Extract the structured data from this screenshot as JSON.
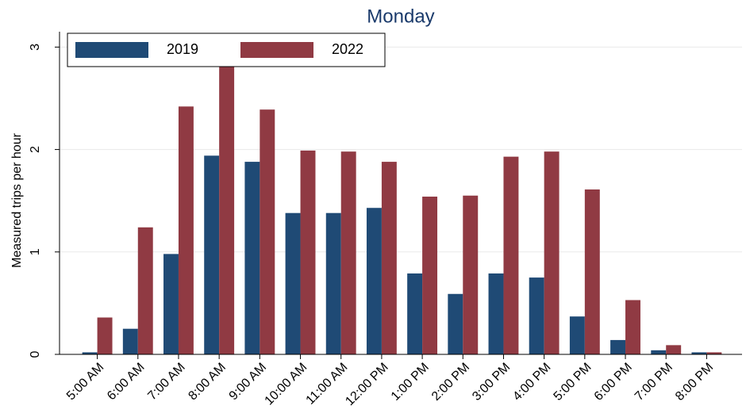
{
  "chart_data": {
    "type": "bar",
    "title": "Monday",
    "y_label": "Measured trips per hour",
    "categories": [
      "5:00 AM",
      "6:00 AM",
      "7:00 AM",
      "8:00 AM",
      "9:00 AM",
      "10:00 AM",
      "11:00 AM",
      "12:00 PM",
      "1:00 PM",
      "2:00 PM",
      "3:00 PM",
      "4:00 PM",
      "5:00 PM",
      "6:00 PM",
      "7:00 PM",
      "8:00 PM"
    ],
    "series": [
      {
        "name": "2019",
        "color": "#1f4a75",
        "values": [
          0.02,
          0.25,
          0.98,
          1.94,
          1.88,
          1.38,
          1.38,
          1.43,
          0.79,
          0.59,
          0.79,
          0.75,
          0.37,
          0.14,
          0.04,
          0.02
        ]
      },
      {
        "name": "2022",
        "color": "#903a43",
        "values": [
          0.36,
          1.24,
          2.42,
          2.82,
          2.39,
          1.99,
          1.98,
          1.88,
          1.54,
          1.55,
          1.93,
          1.98,
          1.61,
          0.53,
          0.09,
          0.02
        ]
      }
    ],
    "ylim": [
      0,
      3.15
    ],
    "yticks": [
      0,
      1,
      2,
      3
    ],
    "grid": true,
    "legend": "top-left"
  }
}
